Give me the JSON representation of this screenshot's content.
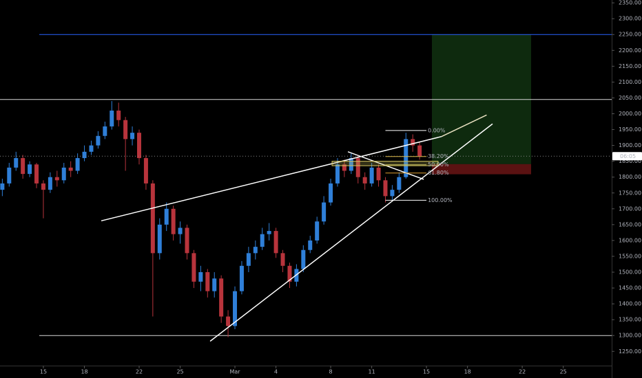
{
  "chart_data": {
    "type": "candlestick",
    "up_color": "#2f7fd8",
    "down_color": "#b8343c",
    "xlim": [
      -3.17,
      41.54
    ],
    "ylim": [
      1205,
      2359
    ],
    "xticks": [
      {
        "value": 0,
        "label": "15"
      },
      {
        "value": 3,
        "label": "18"
      },
      {
        "value": 7,
        "label": "22"
      },
      {
        "value": 10,
        "label": "25"
      },
      {
        "value": 14,
        "label": "Mar"
      },
      {
        "value": 17,
        "label": "4"
      },
      {
        "value": 21,
        "label": "8"
      },
      {
        "value": 24,
        "label": "11"
      },
      {
        "value": 28,
        "label": "15"
      },
      {
        "value": 31,
        "label": "18"
      },
      {
        "value": 35,
        "label": "22"
      },
      {
        "value": 38,
        "label": "25"
      }
    ],
    "yticks": [
      {
        "value": 1250,
        "label": "1250.00"
      },
      {
        "value": 1300,
        "label": "1300.00"
      },
      {
        "value": 1350,
        "label": "1350.00"
      },
      {
        "value": 1400,
        "label": "1400.00"
      },
      {
        "value": 1450,
        "label": "1450.00"
      },
      {
        "value": 1500,
        "label": "1500.00"
      },
      {
        "value": 1550,
        "label": "1550.00"
      },
      {
        "value": 1600,
        "label": "1600.00"
      },
      {
        "value": 1650,
        "label": "1650.00"
      },
      {
        "value": 1700,
        "label": "1700.00"
      },
      {
        "value": 1750,
        "label": "1750.00"
      },
      {
        "value": 1800,
        "label": "1800.00"
      },
      {
        "value": 1850,
        "label": "1850.00"
      },
      {
        "value": 1900,
        "label": "1900.00"
      },
      {
        "value": 1950,
        "label": "1950.00"
      },
      {
        "value": 2000,
        "label": "2000.00"
      },
      {
        "value": 2050,
        "label": "2050.00"
      },
      {
        "value": 2100,
        "label": "2100.00"
      },
      {
        "value": 2150,
        "label": "2150.00"
      },
      {
        "value": 2200,
        "label": "2200.00"
      },
      {
        "value": 2250,
        "label": "2250.00"
      },
      {
        "value": 2300,
        "label": "2300.00"
      },
      {
        "value": 2350,
        "label": "2350.00"
      }
    ],
    "x": [
      -3,
      -2.5,
      -2,
      -1.5,
      -1,
      -0.5,
      0,
      0.5,
      1,
      1.5,
      2,
      2.5,
      3,
      3.5,
      4,
      4.5,
      5,
      5.5,
      6,
      6.5,
      7,
      7.5,
      8,
      8.5,
      9,
      9.5,
      10,
      10.5,
      11,
      11.5,
      12,
      12.5,
      13,
      13.5,
      14,
      14.5,
      15,
      15.5,
      16,
      16.5,
      17,
      17.5,
      18,
      18.5,
      19,
      19.5,
      20,
      20.5,
      21,
      21.5,
      22,
      22.5,
      23,
      23.5,
      24,
      24.5,
      25,
      25.5,
      26,
      26.5,
      27,
      27.5
    ],
    "candles": [
      [
        1760,
        1795,
        1740,
        1780
      ],
      [
        1780,
        1845,
        1770,
        1830
      ],
      [
        1830,
        1880,
        1820,
        1860
      ],
      [
        1860,
        1870,
        1795,
        1810
      ],
      [
        1810,
        1850,
        1800,
        1840
      ],
      [
        1840,
        1845,
        1765,
        1780
      ],
      [
        1780,
        1790,
        1670,
        1760
      ],
      [
        1760,
        1815,
        1750,
        1800
      ],
      [
        1800,
        1820,
        1770,
        1790
      ],
      [
        1790,
        1845,
        1780,
        1830
      ],
      [
        1830,
        1850,
        1800,
        1820
      ],
      [
        1820,
        1875,
        1810,
        1860
      ],
      [
        1860,
        1900,
        1850,
        1880
      ],
      [
        1880,
        1915,
        1870,
        1900
      ],
      [
        1900,
        1945,
        1890,
        1930
      ],
      [
        1930,
        1975,
        1920,
        1960
      ],
      [
        1960,
        2040,
        1950,
        2010
      ],
      [
        2010,
        2035,
        1960,
        1980
      ],
      [
        1980,
        1990,
        1820,
        1920
      ],
      [
        1920,
        1960,
        1900,
        1940
      ],
      [
        1940,
        1950,
        1840,
        1860
      ],
      [
        1860,
        1870,
        1760,
        1780
      ],
      [
        1780,
        1790,
        1360,
        1560
      ],
      [
        1560,
        1670,
        1540,
        1650
      ],
      [
        1650,
        1720,
        1630,
        1700
      ],
      [
        1700,
        1710,
        1600,
        1620
      ],
      [
        1620,
        1660,
        1590,
        1640
      ],
      [
        1640,
        1650,
        1540,
        1560
      ],
      [
        1560,
        1570,
        1450,
        1470
      ],
      [
        1470,
        1520,
        1440,
        1500
      ],
      [
        1500,
        1510,
        1420,
        1440
      ],
      [
        1440,
        1500,
        1420,
        1480
      ],
      [
        1480,
        1490,
        1340,
        1360
      ],
      [
        1360,
        1380,
        1295,
        1330
      ],
      [
        1330,
        1455,
        1320,
        1440
      ],
      [
        1440,
        1535,
        1430,
        1520
      ],
      [
        1520,
        1580,
        1500,
        1560
      ],
      [
        1560,
        1600,
        1540,
        1580
      ],
      [
        1580,
        1640,
        1570,
        1620
      ],
      [
        1620,
        1655,
        1600,
        1630
      ],
      [
        1630,
        1640,
        1545,
        1560
      ],
      [
        1560,
        1570,
        1500,
        1520
      ],
      [
        1520,
        1530,
        1450,
        1470
      ],
      [
        1470,
        1525,
        1455,
        1510
      ],
      [
        1510,
        1585,
        1500,
        1570
      ],
      [
        1570,
        1615,
        1560,
        1600
      ],
      [
        1600,
        1675,
        1590,
        1660
      ],
      [
        1660,
        1740,
        1650,
        1720
      ],
      [
        1720,
        1795,
        1710,
        1780
      ],
      [
        1780,
        1860,
        1770,
        1840
      ],
      [
        1840,
        1855,
        1800,
        1820
      ],
      [
        1820,
        1875,
        1810,
        1860
      ],
      [
        1860,
        1870,
        1780,
        1800
      ],
      [
        1800,
        1815,
        1760,
        1780
      ],
      [
        1780,
        1845,
        1770,
        1830
      ],
      [
        1830,
        1840,
        1770,
        1790
      ],
      [
        1790,
        1800,
        1720,
        1740
      ],
      [
        1740,
        1775,
        1725,
        1760
      ],
      [
        1760,
        1815,
        1750,
        1800
      ],
      [
        1800,
        1940,
        1795,
        1920
      ],
      [
        1920,
        1935,
        1880,
        1900
      ],
      [
        1900,
        1910,
        1855,
        1866
      ]
    ],
    "levels": [
      {
        "value": 2250,
        "color": "#2962ff",
        "start": -0.3
      },
      {
        "value": 2045,
        "color": "#d8d8d8",
        "start": -3.17
      },
      {
        "value": 1300,
        "color": "#d8d8d8",
        "start": -0.3
      }
    ],
    "trendlines": [
      {
        "x": [
          4.23,
          29.1
        ],
        "y": [
          1662,
          1928
        ],
        "color": "#ffffff"
      },
      {
        "x": [
          29.1,
          32.4
        ],
        "y": [
          1928,
          1996
        ],
        "color": "#e8e0c0"
      },
      {
        "x": [
          12.19,
          32.83
        ],
        "y": [
          1282,
          1968
        ],
        "color": "#ffffff"
      },
      {
        "x": [
          22.26,
          27.8
        ],
        "y": [
          1880,
          1793
        ],
        "color": "#ffffff"
      }
    ],
    "fib": {
      "x": [
        25,
        28
      ],
      "prices": [
        1947,
        1865,
        1839,
        1813,
        1727
      ],
      "labels": [
        "0.00%",
        "38.20%",
        "50.00%",
        "61.80%",
        "100.00%"
      ],
      "colors": [
        "#ffffff",
        "#e8c040",
        "#c8c060",
        "#e0a030",
        "#ffffff"
      ]
    },
    "fib_box": {
      "x": [
        21.1,
        28.85
      ],
      "y": [
        1850,
        1836
      ]
    },
    "position": {
      "x": [
        28.4,
        35.65
      ],
      "target": 2250,
      "entry": 1841,
      "stop": 1809
    },
    "last_price": 1866,
    "countdown": "06:05"
  }
}
